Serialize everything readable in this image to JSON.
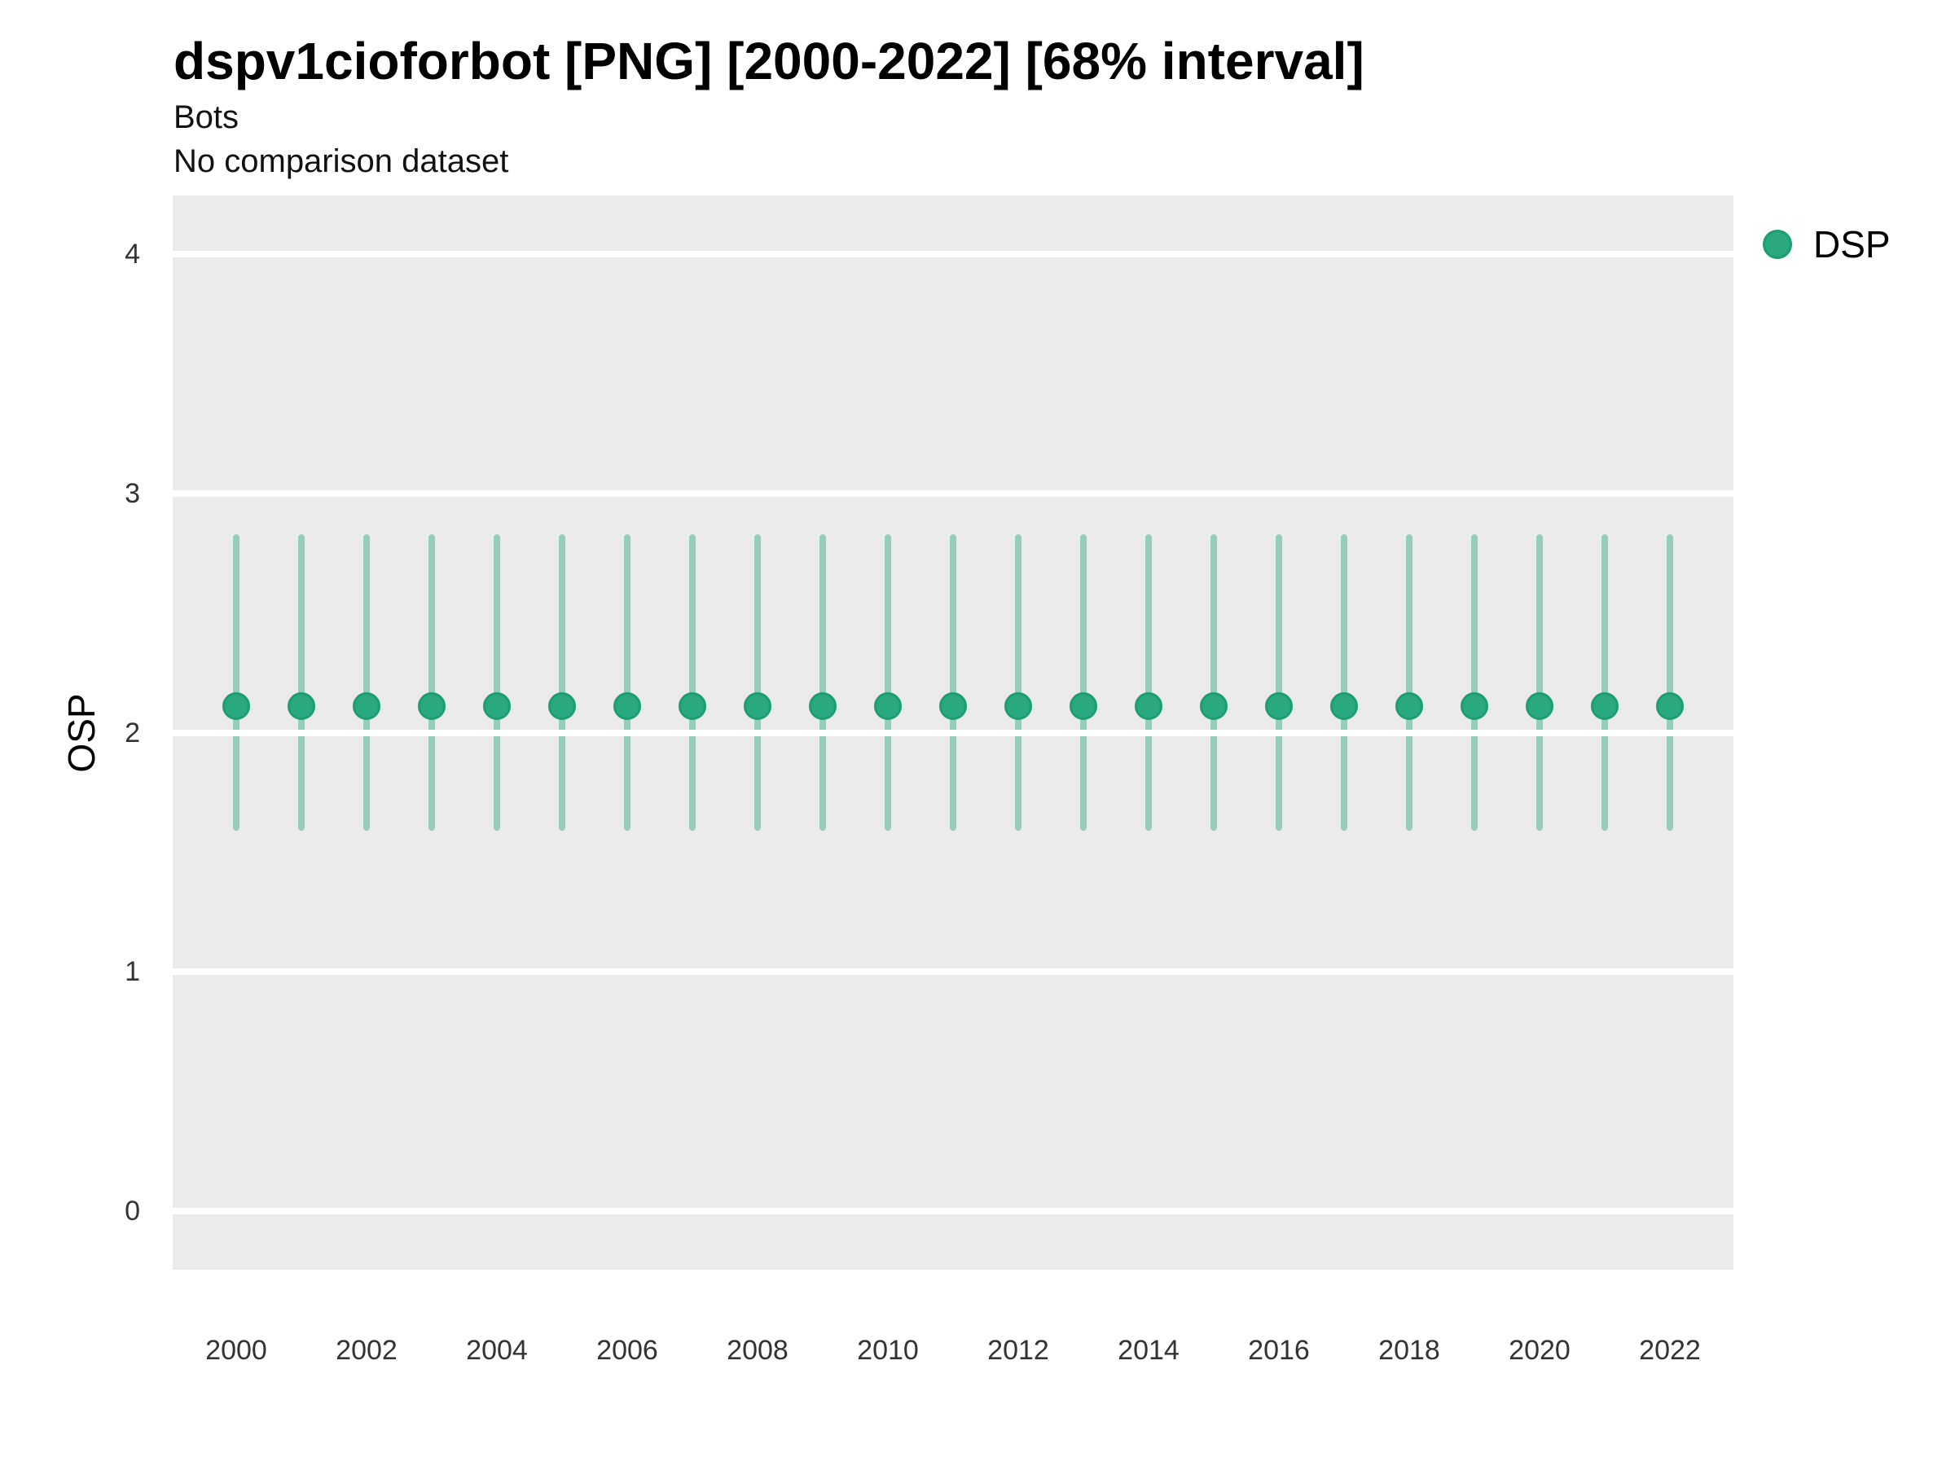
{
  "header": {
    "title": "dspv1cioforbot [PNG] [2000-2022] [68% interval]",
    "subtitle": "Bots",
    "comparison_note": "No comparison dataset"
  },
  "legend": {
    "position": "right",
    "items": [
      {
        "label": "DSP",
        "color": "#2aa87f"
      }
    ]
  },
  "colors": {
    "panel_background": "#ebebeb",
    "gridline": "#ffffff",
    "point_fill": "#2aa87f",
    "point_stroke": "#1b9e71",
    "interval_base": "#2aa87f",
    "interval_alpha": 0.45,
    "tick_text": "#333333",
    "title_text": "#000000"
  },
  "chart_data": {
    "type": "pointrange",
    "title": "dspv1cioforbot [PNG] [2000-2022] [68% interval]",
    "subtitle": "Bots",
    "note": "No comparison dataset",
    "interval_level": "68%",
    "xlabel": "",
    "ylabel": "OSP",
    "grid": true,
    "legend_position": "right",
    "ylim": [
      -0.245,
      4.245
    ],
    "y_ticks": [
      0,
      1,
      2,
      3,
      4
    ],
    "x_ticks": [
      2000,
      2002,
      2004,
      2006,
      2008,
      2010,
      2012,
      2014,
      2016,
      2018,
      2020,
      2022
    ],
    "x": [
      2000,
      2001,
      2002,
      2003,
      2004,
      2005,
      2006,
      2007,
      2008,
      2009,
      2010,
      2011,
      2012,
      2013,
      2014,
      2015,
      2016,
      2017,
      2018,
      2019,
      2020,
      2021,
      2022
    ],
    "series": [
      {
        "name": "DSP",
        "color": "#2aa87f",
        "estimate": [
          2.11,
          2.11,
          2.11,
          2.11,
          2.11,
          2.11,
          2.11,
          2.11,
          2.11,
          2.11,
          2.11,
          2.11,
          2.11,
          2.11,
          2.11,
          2.11,
          2.11,
          2.11,
          2.11,
          2.11,
          2.11,
          2.11,
          2.11
        ],
        "lower": [
          1.59,
          1.59,
          1.59,
          1.59,
          1.59,
          1.59,
          1.59,
          1.59,
          1.59,
          1.59,
          1.59,
          1.59,
          1.59,
          1.59,
          1.59,
          1.59,
          1.59,
          1.59,
          1.59,
          1.59,
          1.59,
          1.59,
          1.59
        ],
        "upper": [
          2.83,
          2.83,
          2.83,
          2.83,
          2.83,
          2.83,
          2.83,
          2.83,
          2.83,
          2.83,
          2.83,
          2.83,
          2.83,
          2.83,
          2.83,
          2.83,
          2.83,
          2.83,
          2.83,
          2.83,
          2.83,
          2.83,
          2.83
        ]
      }
    ]
  }
}
